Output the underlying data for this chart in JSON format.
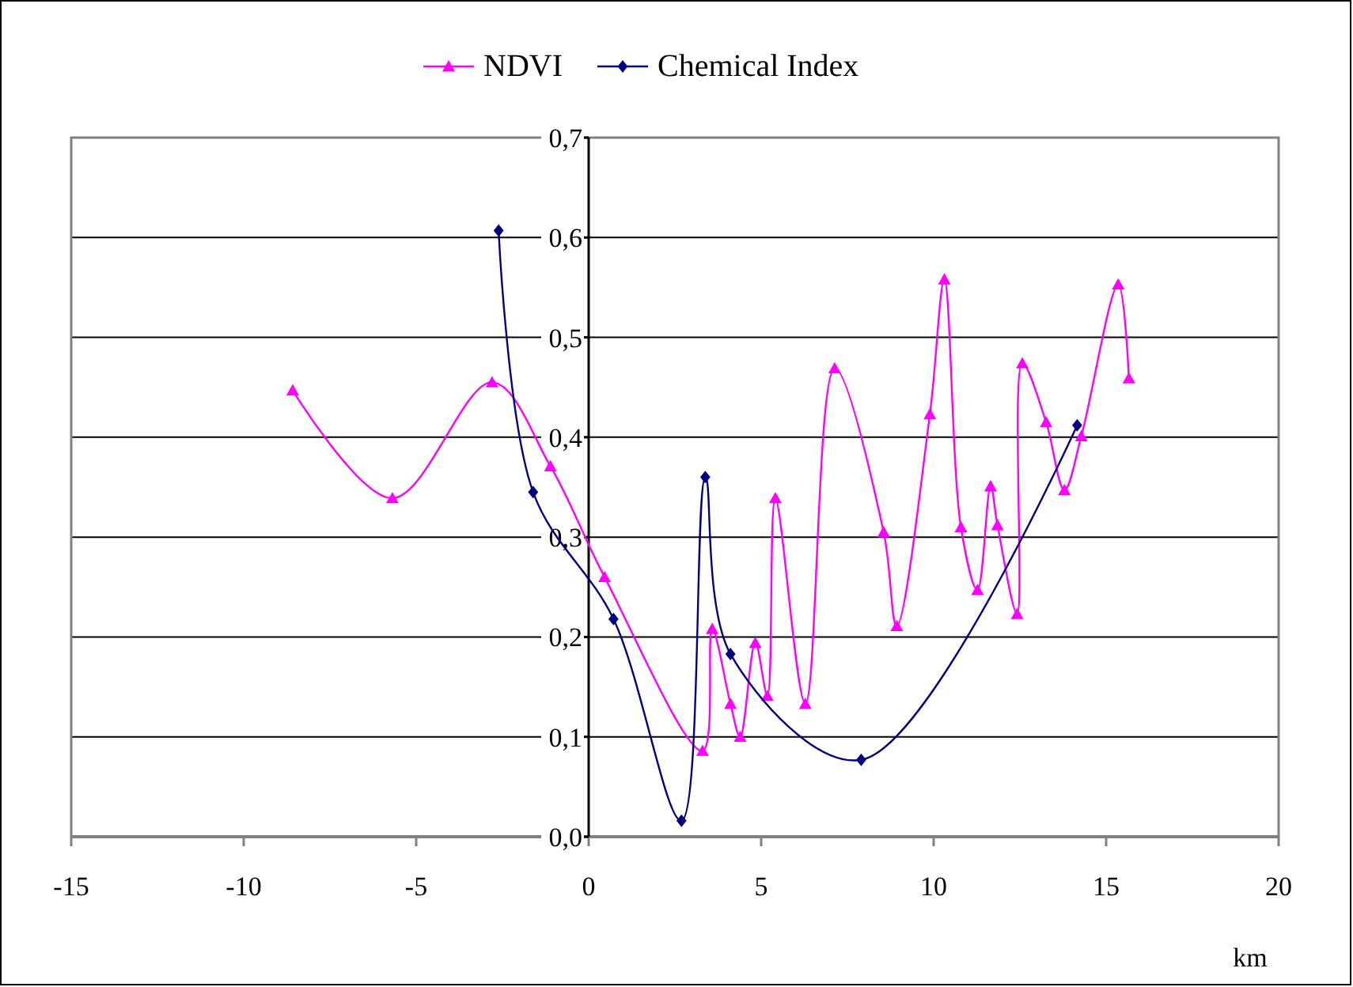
{
  "chart_data": {
    "type": "line",
    "xlabel": "km",
    "series": [
      {
        "name": "NDVI",
        "color": "#ff00ff",
        "marker": "triangle",
        "x": [
          -8.58,
          -5.69,
          -2.8,
          -1.11,
          0.46,
          3.3,
          3.58,
          4.11,
          4.39,
          4.83,
          5.18,
          5.41,
          6.28,
          7.13,
          8.55,
          8.93,
          9.89,
          10.31,
          10.79,
          11.27,
          11.65,
          11.85,
          12.42,
          12.57,
          13.26,
          13.79,
          14.28,
          15.35,
          15.66
        ],
        "values": [
          0.447,
          0.339,
          0.455,
          0.371,
          0.26,
          0.086,
          0.208,
          0.133,
          0.1,
          0.194,
          0.141,
          0.339,
          0.133,
          0.469,
          0.305,
          0.211,
          0.423,
          0.558,
          0.31,
          0.247,
          0.351,
          0.312,
          0.223,
          0.474,
          0.415,
          0.347,
          0.401,
          0.553,
          0.459
        ]
      },
      {
        "name": "Chemical Index",
        "color": "#000080",
        "marker": "diamond",
        "x": [
          -2.61,
          -1.61,
          0.72,
          2.69,
          3.38,
          4.11,
          7.9,
          14.16
        ],
        "values": [
          0.607,
          0.345,
          0.218,
          0.016,
          0.36,
          0.183,
          0.077,
          0.412
        ]
      }
    ],
    "xlim": [
      -15,
      20
    ],
    "xticks": [
      -15,
      -10,
      -5,
      0,
      5,
      10,
      15,
      20
    ],
    "ylim": [
      0,
      0.7
    ],
    "yticks": [
      {
        "value": 0,
        "label": "0,0"
      },
      {
        "value": 0.1,
        "label": "0,1"
      },
      {
        "value": 0.2,
        "label": "0,2"
      },
      {
        "value": 0.3,
        "label": "0,3"
      },
      {
        "value": 0.4,
        "label": "0,4"
      },
      {
        "value": 0.5,
        "label": "0,5"
      },
      {
        "value": 0.6,
        "label": "0,6"
      },
      {
        "value": 0.7,
        "label": "0,7"
      }
    ],
    "grid": "y",
    "legend": "top",
    "line_style": "solid"
  }
}
